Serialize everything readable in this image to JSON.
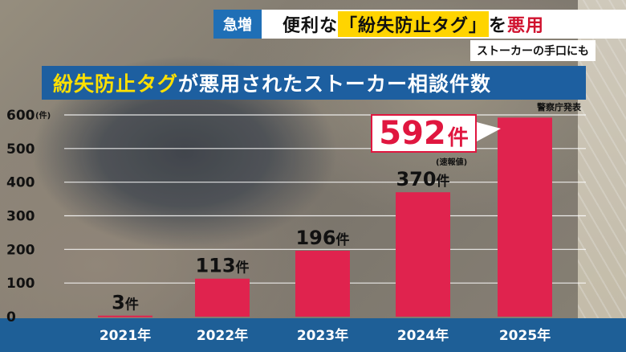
{
  "banner": {
    "tag": "急増",
    "text_pre": "便利な",
    "text_highlight": "「紛失防止タグ」",
    "text_mid": "を",
    "text_red": "悪用"
  },
  "subbanner": "ストーカーの手口にも",
  "title_yellow": "紛失防止タグ",
  "title_rest": "が悪用されたストーカー相談件数",
  "source": "警察庁発表",
  "callout": {
    "value": "592",
    "unit": "件",
    "note": "(速報値)"
  },
  "colors": {
    "bar": "#e0234e",
    "axis_bar": "#1e5f97",
    "title_bg": "#1d5fa0",
    "accent_yellow": "#ffe000"
  },
  "chart_data": {
    "type": "bar",
    "title": "紛失防止タグが悪用されたストーカー相談件数",
    "categories": [
      "2021年",
      "2022年",
      "2023年",
      "2024年",
      "2025年"
    ],
    "values": [
      3,
      113,
      196,
      370,
      592
    ],
    "data_labels": [
      "3件",
      "113件",
      "196件",
      "370件",
      "592件"
    ],
    "yticks": [
      0,
      100,
      200,
      300,
      400,
      500,
      600
    ],
    "ytick_unit": "(件)",
    "ylim": [
      0,
      600
    ],
    "grid": true,
    "legend": "none"
  }
}
